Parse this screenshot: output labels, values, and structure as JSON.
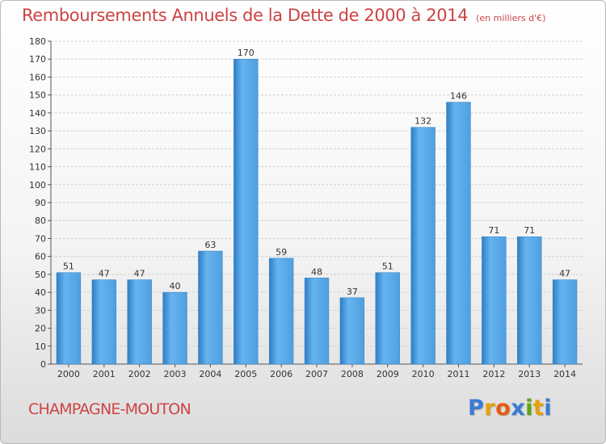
{
  "header": {
    "title": "Remboursements Annuels de la Dette de 2000 à 2014",
    "subtitle": "(en milliers d'€)"
  },
  "footer": {
    "place": "CHAMPAGNE-MOUTON",
    "logo_letters": [
      "P",
      "r",
      "o",
      "x",
      "i",
      "t",
      "i"
    ],
    "logo_colors": [
      "#3a7bd5",
      "#e8a200",
      "#e85c0d",
      "#3a7bd5",
      "#59a80f",
      "#e8a200",
      "#3a7bd5"
    ]
  },
  "colors": {
    "bar": "#4f9fe0",
    "bar_light": "#66b4ef",
    "bar_dark": "#2f7ec4",
    "grid": "#d0d0d0",
    "title": "#cc4444"
  },
  "chart_data": {
    "type": "bar",
    "title": "Remboursements Annuels de la Dette de 2000 à 2014",
    "subtitle": "(en milliers d'€)",
    "categories": [
      "2000",
      "2001",
      "2002",
      "2003",
      "2004",
      "2005",
      "2006",
      "2007",
      "2008",
      "2009",
      "2010",
      "2011",
      "2012",
      "2013",
      "2014"
    ],
    "values": [
      51,
      47,
      47,
      40,
      63,
      170,
      59,
      48,
      37,
      51,
      132,
      146,
      71,
      71,
      47
    ],
    "ylim": [
      0,
      180
    ],
    "ytick_step": 10,
    "grid": true,
    "xlabel": "",
    "ylabel": ""
  }
}
